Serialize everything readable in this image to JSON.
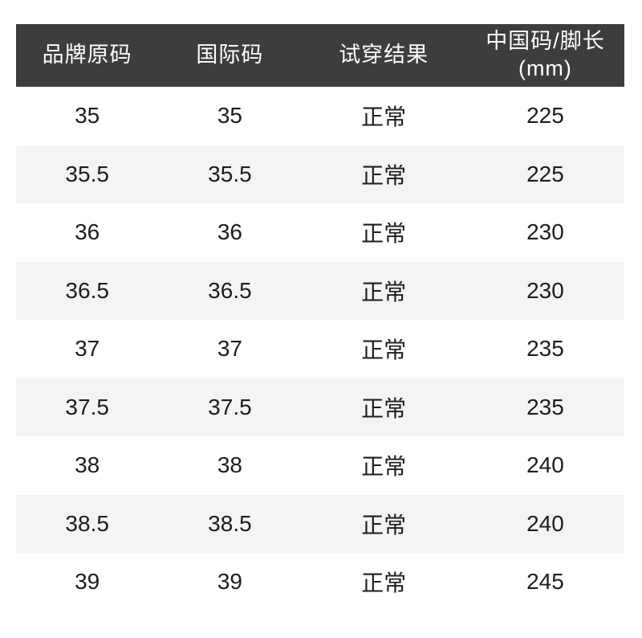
{
  "page": {
    "background_color": "#ffffff"
  },
  "chart_data": {
    "type": "table",
    "title": "",
    "header_bg": "#3d3d3d",
    "header_text_color": "#ffffff",
    "stripe_bg": "#f5f4f2",
    "body_text_color": "#1d1d1d",
    "header": {
      "col1": "品牌原码",
      "col2": "国际码",
      "col3": "试穿结果",
      "col4_line1": "中国码/脚长",
      "col4_line2": "(mm)"
    },
    "columns": [
      "品牌原码",
      "国际码",
      "试穿结果",
      "中国码/脚长 (mm)"
    ],
    "rows": [
      [
        "35",
        "35",
        "正常",
        "225"
      ],
      [
        "35.5",
        "35.5",
        "正常",
        "225"
      ],
      [
        "36",
        "36",
        "正常",
        "230"
      ],
      [
        "36.5",
        "36.5",
        "正常",
        "230"
      ],
      [
        "37",
        "37",
        "正常",
        "235"
      ],
      [
        "37.5",
        "37.5",
        "正常",
        "235"
      ],
      [
        "38",
        "38",
        "正常",
        "240"
      ],
      [
        "38.5",
        "38.5",
        "正常",
        "240"
      ],
      [
        "39",
        "39",
        "正常",
        "245"
      ]
    ]
  }
}
